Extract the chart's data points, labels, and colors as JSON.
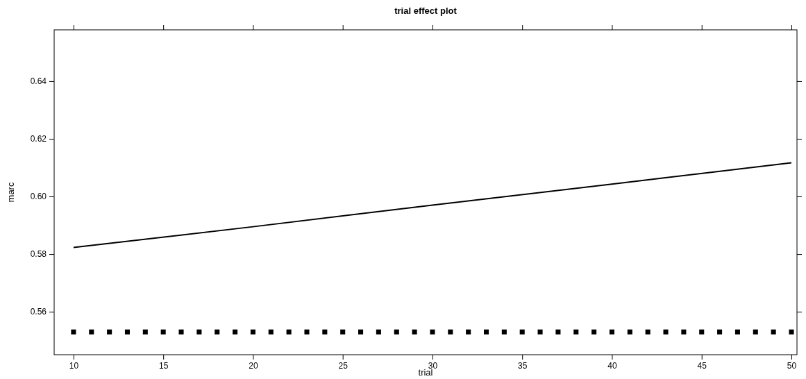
{
  "chart_data": {
    "type": "line",
    "title": "trial effect plot",
    "xlabel": "trial",
    "ylabel": "marc",
    "xlim": [
      8.92,
      50.31
    ],
    "ylim": [
      0.5451,
      0.6578
    ],
    "xticks": [
      10,
      15,
      20,
      25,
      30,
      35,
      40,
      45,
      50
    ],
    "yticks": [
      0.56,
      0.58,
      {
        "value": 0.6,
        "label": "0.60"
      },
      0.62,
      0.64
    ],
    "grid": false,
    "series": [
      {
        "color": "#000000",
        "x": [
          10,
          20,
          30,
          40,
          50
        ],
        "values": [
          0.5823,
          0.5895,
          0.597,
          0.6043,
          0.6117
        ],
        "line_style": "solid",
        "marker": "none"
      },
      {
        "type": "scatter",
        "color": "#000000",
        "marker": "square",
        "x": [
          10,
          11,
          12,
          13,
          14,
          15,
          16,
          17,
          18,
          19,
          20,
          21,
          22,
          23,
          24,
          25,
          26,
          27,
          28,
          29,
          30,
          31,
          32,
          33,
          34,
          35,
          36,
          37,
          38,
          39,
          40,
          41,
          42,
          43,
          44,
          45,
          46,
          47,
          48,
          49,
          50
        ],
        "values": [
          0.553,
          0.553,
          0.553,
          0.553,
          0.553,
          0.553,
          0.553,
          0.553,
          0.553,
          0.553,
          0.553,
          0.553,
          0.553,
          0.553,
          0.553,
          0.553,
          0.553,
          0.553,
          0.553,
          0.553,
          0.553,
          0.553,
          0.553,
          0.553,
          0.553,
          0.553,
          0.553,
          0.553,
          0.553,
          0.553,
          0.553,
          0.553,
          0.553,
          0.553,
          0.553,
          0.553,
          0.553,
          0.553,
          0.553,
          0.553,
          0.553
        ]
      }
    ]
  }
}
